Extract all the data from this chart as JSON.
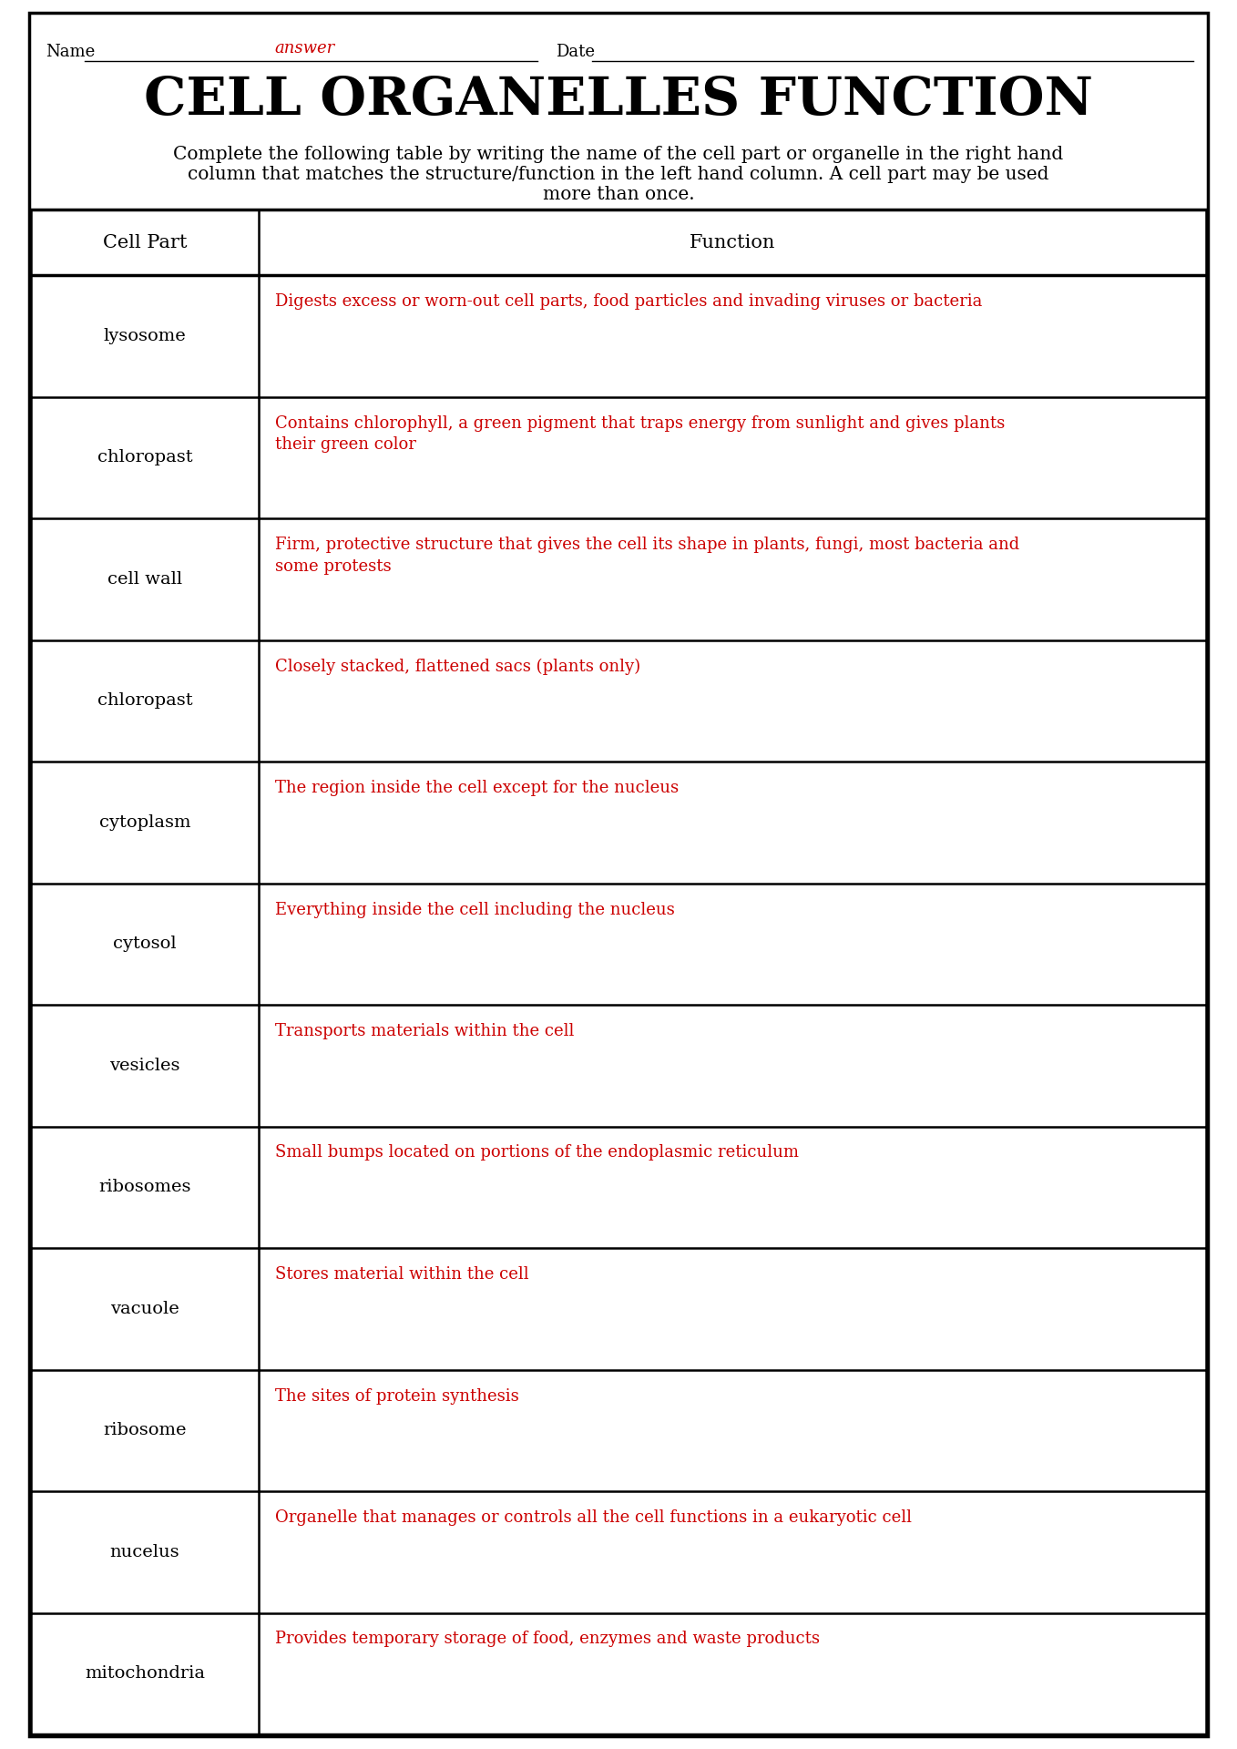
{
  "title": "CELL ORGANELLES FUNCTION",
  "subtitle_line1": "Complete the following table by writing the name of the cell part or organelle in the right hand",
  "subtitle_line2": "column that matches the structure/function in the left hand column. A cell part may be used",
  "subtitle_line3": "more than once.",
  "name_label": "Name",
  "answer_text": "answer",
  "date_label": "Date",
  "col1_header": "Cell Part",
  "col2_header": "Function",
  "rows": [
    {
      "cell_part": "lysosome",
      "function": "Digests excess or worn-out cell parts, food particles and invading viruses or bacteria"
    },
    {
      "cell_part": "chloropast",
      "function": "Contains chlorophyll, a green pigment that traps energy from sunlight and gives plants\ntheir green color"
    },
    {
      "cell_part": "cell wall",
      "function": "Firm, protective structure that gives the cell its shape in plants, fungi, most bacteria and\nsome protests"
    },
    {
      "cell_part": "chloropast",
      "function": "Closely stacked, flattened sacs (plants only)"
    },
    {
      "cell_part": "cytoplasm",
      "function": "The region inside the cell except for the nucleus"
    },
    {
      "cell_part": "cytosol",
      "function": "Everything inside the cell including the nucleus"
    },
    {
      "cell_part": "vesicles",
      "function": "Transports materials within the cell"
    },
    {
      "cell_part": "ribosomes",
      "function": "Small bumps located on portions of the endoplasmic reticulum"
    },
    {
      "cell_part": "vacuole",
      "function": "Stores material within the cell"
    },
    {
      "cell_part": "ribosome",
      "function": "The sites of protein synthesis"
    },
    {
      "cell_part": "nucelus",
      "function": "Organelle that manages or controls all the cell functions in a eukaryotic cell"
    },
    {
      "cell_part": "mitochondria",
      "function": "Provides temporary storage of food, enzymes and waste products"
    }
  ],
  "bg_color": "#ffffff",
  "text_color_black": "#000000",
  "text_color_red": "#cc0000",
  "border_color": "#000000",
  "title_fontsize": 42,
  "subtitle_fontsize": 14.5,
  "header_fontsize": 15,
  "cell_part_fontsize": 14,
  "function_fontsize": 13,
  "name_fontsize": 13,
  "answer_fontsize": 13
}
